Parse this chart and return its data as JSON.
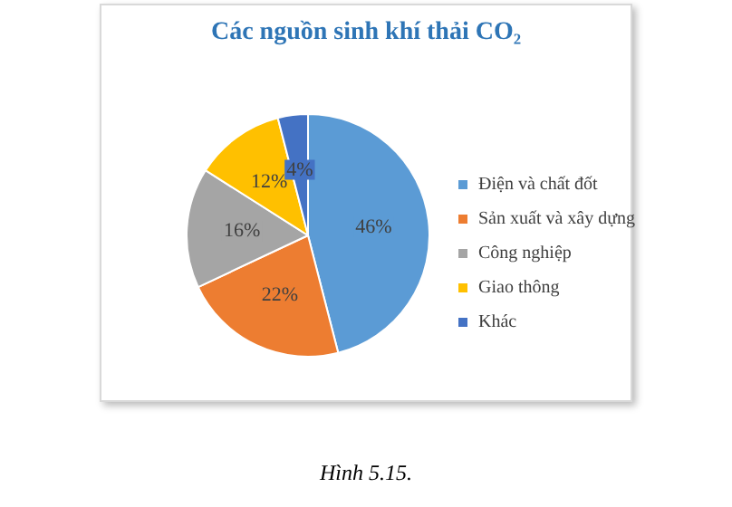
{
  "chart_data": {
    "type": "pie",
    "title": "Các nguồn sinh khí thải CO₂",
    "categories": [
      "Điện và chất đốt",
      "Sản xuất và xây dựng",
      "Công nghiệp",
      "Giao thông",
      "Khác"
    ],
    "values": [
      46,
      22,
      16,
      12,
      4
    ],
    "colors": [
      "#5b9bd5",
      "#ed7d31",
      "#a5a5a5",
      "#ffc000",
      "#4472c4"
    ],
    "value_labels": [
      "46%",
      "22%",
      "16%",
      "12%",
      "4%"
    ],
    "legend": "right",
    "annotations": [
      "Hình 5.15."
    ]
  }
}
